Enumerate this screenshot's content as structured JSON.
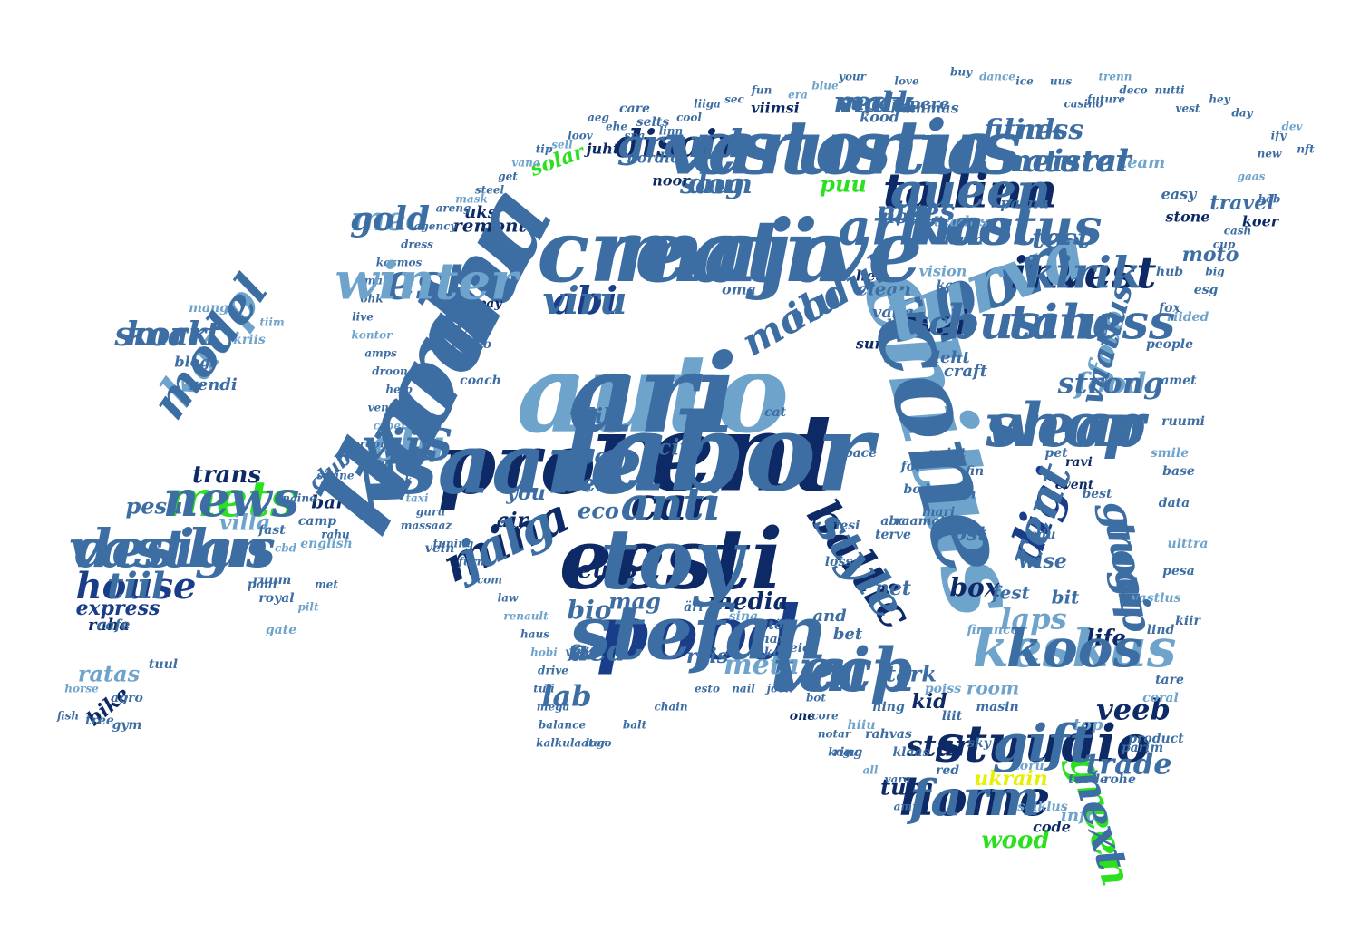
{
  "palette": {
    "dark": "#0d2a66",
    "navy": "#1a3d8a",
    "mid": "#3c6da3",
    "light": "#6ea3cc",
    "pale": "#9dc3df",
    "green": "#2be01f",
    "yellow": "#e6f000"
  },
  "words": [
    {
      "text": "auto",
      "color": "light"
    },
    {
      "text": "kodu",
      "color": "mid"
    },
    {
      "text": "ehitus",
      "color": "light"
    },
    {
      "text": "rent",
      "color": "dark"
    },
    {
      "text": "eesti",
      "color": "dark"
    },
    {
      "text": "pro",
      "color": "dark"
    },
    {
      "text": "maja",
      "color": "mid"
    },
    {
      "text": "estonia",
      "color": "mid"
    },
    {
      "text": "sport",
      "color": "mid"
    },
    {
      "text": "pood",
      "color": "navy"
    },
    {
      "text": "tallinn",
      "color": "dark"
    },
    {
      "text": "kool",
      "color": "mid"
    },
    {
      "text": "shop",
      "color": "mid"
    },
    {
      "text": "stuudio",
      "color": "dark"
    },
    {
      "text": "tech",
      "color": "mid"
    },
    {
      "text": "keskus",
      "color": "light"
    },
    {
      "text": "mina",
      "color": "dark"
    },
    {
      "text": "baltic",
      "color": "dark"
    },
    {
      "text": "design",
      "color": "mid"
    },
    {
      "text": "group",
      "color": "mid"
    },
    {
      "text": "digi",
      "color": "navy"
    },
    {
      "text": "est",
      "color": "mid"
    },
    {
      "text": "invest",
      "color": "dark"
    },
    {
      "text": "talu",
      "color": "mid"
    },
    {
      "text": "home",
      "color": "dark"
    },
    {
      "text": "kaup",
      "color": "light"
    },
    {
      "text": "house",
      "color": "navy"
    },
    {
      "text": "mets",
      "color": "green"
    },
    {
      "text": "green",
      "color": "green"
    },
    {
      "text": "car",
      "color": "dark"
    },
    {
      "text": "smart",
      "color": "mid"
    },
    {
      "text": "elu",
      "color": "light"
    },
    {
      "text": "abi",
      "color": "navy"
    },
    {
      "text": "ilu",
      "color": "mid"
    },
    {
      "text": "disain",
      "color": "dark"
    },
    {
      "text": "med",
      "color": "light"
    },
    {
      "text": "web",
      "color": "dark"
    },
    {
      "text": "foto",
      "color": "light"
    },
    {
      "text": "food",
      "color": "light"
    },
    {
      "text": "meister",
      "color": "mid"
    },
    {
      "text": "link",
      "color": "mid"
    },
    {
      "text": "matk",
      "color": "mid"
    },
    {
      "text": "saun",
      "color": "mid"
    },
    {
      "text": "mees",
      "color": "mid"
    },
    {
      "text": "test",
      "color": "mid"
    },
    {
      "text": "laps",
      "color": "light"
    },
    {
      "text": "trade",
      "color": "mid"
    },
    {
      "text": "veeb",
      "color": "dark"
    },
    {
      "text": "star",
      "color": "dark"
    },
    {
      "text": "aed",
      "color": "mid"
    },
    {
      "text": "lab",
      "color": "mid"
    },
    {
      "text": "meta",
      "color": "light"
    },
    {
      "text": "bio",
      "color": "mid"
    },
    {
      "text": "wood",
      "color": "green"
    },
    {
      "text": "ukrain",
      "color": "yellow"
    },
    {
      "text": "puu",
      "color": "green"
    },
    {
      "text": "solar",
      "color": "green"
    },
    {
      "text": "trans",
      "color": "dark"
    },
    {
      "text": "club",
      "color": "mid"
    },
    {
      "text": "villa",
      "color": "light"
    },
    {
      "text": "pesu",
      "color": "mid"
    },
    {
      "text": "laen",
      "color": "mid"
    },
    {
      "text": "media",
      "color": "dark"
    },
    {
      "text": "mag",
      "color": "mid"
    },
    {
      "text": "euro",
      "color": "dark"
    },
    {
      "text": "box",
      "color": "dark"
    },
    {
      "text": "net",
      "color": "mid"
    },
    {
      "text": "lux",
      "color": "mid"
    },
    {
      "text": "eco",
      "color": "mid"
    },
    {
      "text": "tee",
      "color": "mid"
    },
    {
      "text": "lill",
      "color": "mid"
    },
    {
      "text": "you",
      "color": "mid"
    },
    {
      "text": "air",
      "color": "dark"
    },
    {
      "text": "city",
      "color": "mid"
    },
    {
      "text": "life",
      "color": "dark"
    },
    {
      "text": "wise",
      "color": "mid"
    },
    {
      "text": "ost",
      "color": "mid"
    },
    {
      "text": "fest",
      "color": "mid"
    },
    {
      "text": "bit",
      "color": "mid"
    },
    {
      "text": "and",
      "color": "mid"
    },
    {
      "text": "bet",
      "color": "mid"
    },
    {
      "text": "reis",
      "color": "mid"
    },
    {
      "text": "fix",
      "color": "mid"
    },
    {
      "text": "tark",
      "color": "mid"
    },
    {
      "text": "room",
      "color": "light"
    },
    {
      "text": "kid",
      "color": "dark"
    },
    {
      "text": "turg",
      "color": "dark"
    },
    {
      "text": "top",
      "color": "light"
    },
    {
      "text": "info",
      "color": "light"
    },
    {
      "text": "code",
      "color": "dark"
    },
    {
      "text": "express",
      "color": "navy"
    },
    {
      "text": "raha",
      "color": "dark"
    },
    {
      "text": "ratas",
      "color": "light"
    },
    {
      "text": "bike",
      "color": "dark"
    },
    {
      "text": "cafe",
      "color": "mid"
    },
    {
      "text": "bar",
      "color": "dark"
    },
    {
      "text": "rendi",
      "color": "mid"
    },
    {
      "text": "blogi",
      "color": "mid"
    },
    {
      "text": "moto",
      "color": "mid"
    },
    {
      "text": "travel",
      "color": "mid"
    },
    {
      "text": "nord",
      "color": "mid"
    },
    {
      "text": "remont",
      "color": "dark"
    },
    {
      "text": "uks",
      "color": "dark"
    },
    {
      "text": "vaba",
      "color": "mid"
    },
    {
      "text": "leht",
      "color": "mid"
    },
    {
      "text": "clean",
      "color": "mid"
    },
    {
      "text": "sun",
      "color": "dark"
    },
    {
      "text": "buss",
      "color": "mid"
    },
    {
      "text": "craft",
      "color": "mid"
    },
    {
      "text": "hea",
      "color": "dark"
    },
    {
      "text": "super",
      "color": "mid"
    },
    {
      "text": "pere",
      "color": "mid"
    },
    {
      "text": "viimsi",
      "color": "dark"
    },
    {
      "text": "kood",
      "color": "mid"
    },
    {
      "text": "hammas",
      "color": "mid"
    },
    {
      "text": "noor",
      "color": "dark"
    },
    {
      "text": "team",
      "color": "light"
    },
    {
      "text": "nordic",
      "color": "mid"
    },
    {
      "text": "juht",
      "color": "dark"
    },
    {
      "text": "selts",
      "color": "mid"
    },
    {
      "text": "care",
      "color": "mid"
    },
    {
      "text": "easy",
      "color": "mid"
    },
    {
      "text": "stone",
      "color": "dark"
    },
    {
      "text": "koer",
      "color": "dark"
    },
    {
      "text": "vision",
      "color": "light"
    },
    {
      "text": "narva",
      "color": "mid"
    },
    {
      "text": "parnu",
      "color": "mid"
    },
    {
      "text": "teadus",
      "color": "light"
    },
    {
      "text": "kass",
      "color": "mid"
    },
    {
      "text": "oma",
      "color": "mid"
    },
    {
      "text": "hub",
      "color": "mid"
    },
    {
      "text": "fox",
      "color": "mid"
    },
    {
      "text": "cat",
      "color": "mid"
    },
    {
      "text": "pay",
      "color": "dark"
    },
    {
      "text": "cargo",
      "color": "mid"
    },
    {
      "text": "coach",
      "color": "mid"
    },
    {
      "text": "mang",
      "color": "light"
    },
    {
      "text": "kriis",
      "color": "light"
    },
    {
      "text": "tiim",
      "color": "light"
    },
    {
      "text": "tuul",
      "color": "mid"
    },
    {
      "text": "camp",
      "color": "mid"
    },
    {
      "text": "ruum",
      "color": "mid"
    },
    {
      "text": "paat",
      "color": "mid"
    },
    {
      "text": "fast",
      "color": "mid"
    },
    {
      "text": "royal",
      "color": "mid"
    },
    {
      "text": "english",
      "color": "light"
    },
    {
      "text": "agro",
      "color": "mid"
    },
    {
      "text": "tree",
      "color": "mid"
    },
    {
      "text": "gym",
      "color": "mid"
    },
    {
      "text": "fish",
      "color": "mid"
    },
    {
      "text": "horse",
      "color": "light"
    },
    {
      "text": "naine",
      "color": "mid"
    },
    {
      "text": "sinine",
      "color": "mid"
    },
    {
      "text": "cbd",
      "color": "light"
    },
    {
      "text": "rahu",
      "color": "mid"
    },
    {
      "text": "gate",
      "color": "light"
    },
    {
      "text": "pilt",
      "color": "light"
    },
    {
      "text": "met",
      "color": "mid"
    },
    {
      "text": "guru",
      "color": "mid"
    },
    {
      "text": "vein",
      "color": "mid"
    },
    {
      "text": "mesi",
      "color": "mid"
    },
    {
      "text": "abc",
      "color": "mid"
    },
    {
      "text": "raamat",
      "color": "mid"
    },
    {
      "text": "aken",
      "color": "mid"
    },
    {
      "text": "finance",
      "color": "light"
    },
    {
      "text": "edu",
      "color": "mid"
    },
    {
      "text": "best",
      "color": "mid"
    },
    {
      "text": "event",
      "color": "dark"
    },
    {
      "text": "pet",
      "color": "mid"
    },
    {
      "text": "ravi",
      "color": "dark"
    },
    {
      "text": "fin",
      "color": "mid"
    },
    {
      "text": "point",
      "color": "mid"
    },
    {
      "text": "space",
      "color": "mid"
    },
    {
      "text": "body",
      "color": "mid"
    },
    {
      "text": "mari",
      "color": "mid"
    },
    {
      "text": "terve",
      "color": "mid"
    },
    {
      "text": "loss",
      "color": "mid"
    },
    {
      "text": "for",
      "color": "mid"
    },
    {
      "text": "visit",
      "color": "mid"
    },
    {
      "text": "äri",
      "color": "mid"
    },
    {
      "text": "sina",
      "color": "light"
    },
    {
      "text": "töö",
      "color": "mid"
    },
    {
      "text": "max",
      "color": "mid"
    },
    {
      "text": "meie",
      "color": "mid"
    },
    {
      "text": "alko",
      "color": "mid"
    },
    {
      "text": "one",
      "color": "dark"
    },
    {
      "text": "hiiu",
      "color": "light"
    },
    {
      "text": "rahvas",
      "color": "mid"
    },
    {
      "text": "ring",
      "color": "mid"
    },
    {
      "text": "red",
      "color": "mid"
    },
    {
      "text": "sky",
      "color": "mid"
    },
    {
      "text": "klaas",
      "color": "mid"
    },
    {
      "text": "liit",
      "color": "mid"
    },
    {
      "text": "hing",
      "color": "mid"
    },
    {
      "text": "poiss",
      "color": "light"
    },
    {
      "text": "masin",
      "color": "mid"
    },
    {
      "text": "toru",
      "color": "light"
    },
    {
      "text": "seiklus",
      "color": "light"
    },
    {
      "text": "toode",
      "color": "mid"
    },
    {
      "text": "rohe",
      "color": "mid"
    },
    {
      "text": "parim",
      "color": "mid"
    },
    {
      "text": "product",
      "color": "mid"
    },
    {
      "text": "coral",
      "color": "light"
    },
    {
      "text": "tare",
      "color": "mid"
    },
    {
      "text": "lind",
      "color": "mid"
    },
    {
      "text": "kiir",
      "color": "mid"
    },
    {
      "text": "vastlus",
      "color": "light"
    },
    {
      "text": "pesa",
      "color": "mid"
    },
    {
      "text": "ulttra",
      "color": "light"
    },
    {
      "text": "data",
      "color": "mid"
    },
    {
      "text": "base",
      "color": "mid"
    },
    {
      "text": "smile",
      "color": "light"
    },
    {
      "text": "ruumi",
      "color": "mid"
    },
    {
      "text": "amet",
      "color": "mid"
    },
    {
      "text": "people",
      "color": "mid"
    },
    {
      "text": "riided",
      "color": "light"
    },
    {
      "text": "esg",
      "color": "mid"
    },
    {
      "text": "big",
      "color": "mid"
    },
    {
      "text": "cup",
      "color": "mid"
    },
    {
      "text": "cash",
      "color": "mid"
    },
    {
      "text": "bob",
      "color": "mid"
    },
    {
      "text": "gaas",
      "color": "light"
    },
    {
      "text": "new",
      "color": "mid"
    },
    {
      "text": "ify",
      "color": "mid"
    },
    {
      "text": "nft",
      "color": "mid"
    },
    {
      "text": "dev",
      "color": "light"
    },
    {
      "text": "day",
      "color": "mid"
    },
    {
      "text": "hey",
      "color": "mid"
    },
    {
      "text": "vest",
      "color": "mid"
    },
    {
      "text": "nutti",
      "color": "mid"
    },
    {
      "text": "deco",
      "color": "mid"
    },
    {
      "text": "future",
      "color": "mid"
    },
    {
      "text": "casino",
      "color": "mid"
    },
    {
      "text": "trenn",
      "color": "light"
    },
    {
      "text": "uus",
      "color": "mid"
    },
    {
      "text": "ice",
      "color": "mid"
    },
    {
      "text": "dance",
      "color": "light"
    },
    {
      "text": "buy",
      "color": "mid"
    },
    {
      "text": "love",
      "color": "mid"
    },
    {
      "text": "your",
      "color": "mid"
    },
    {
      "text": "blue",
      "color": "light"
    },
    {
      "text": "era",
      "color": "light"
    },
    {
      "text": "fun",
      "color": "mid"
    },
    {
      "text": "sec",
      "color": "mid"
    },
    {
      "text": "liiga",
      "color": "mid"
    },
    {
      "text": "cool",
      "color": "mid"
    },
    {
      "text": "linn",
      "color": "mid"
    },
    {
      "text": "spa",
      "color": "mid"
    },
    {
      "text": "ehe",
      "color": "mid"
    },
    {
      "text": "aeg",
      "color": "mid"
    },
    {
      "text": "loov",
      "color": "mid"
    },
    {
      "text": "sell",
      "color": "light"
    },
    {
      "text": "tip",
      "color": "mid"
    },
    {
      "text": "vana",
      "color": "light"
    },
    {
      "text": "get",
      "color": "mid"
    },
    {
      "text": "steel",
      "color": "mid"
    },
    {
      "text": "mask",
      "color": "light"
    },
    {
      "text": "areng",
      "color": "mid"
    },
    {
      "text": "agency",
      "color": "mid"
    },
    {
      "text": "dress",
      "color": "mid"
    },
    {
      "text": "kosmos",
      "color": "mid"
    },
    {
      "text": "mahe",
      "color": "mid"
    },
    {
      "text": "ohk",
      "color": "mid"
    },
    {
      "text": "live",
      "color": "mid"
    },
    {
      "text": "kontor",
      "color": "light"
    },
    {
      "text": "amps",
      "color": "mid"
    },
    {
      "text": "droon",
      "color": "mid"
    },
    {
      "text": "help",
      "color": "mid"
    },
    {
      "text": "vent",
      "color": "mid"
    },
    {
      "text": "cyber",
      "color": "light"
    },
    {
      "text": "groom",
      "color": "mid"
    },
    {
      "text": "real",
      "color": "mid"
    },
    {
      "text": "look",
      "color": "mid"
    },
    {
      "text": "taxi",
      "color": "light"
    },
    {
      "text": "massaaz",
      "color": "mid"
    },
    {
      "text": "tuning",
      "color": "mid"
    },
    {
      "text": "furn",
      "color": "mid"
    },
    {
      "text": "com",
      "color": "mid"
    },
    {
      "text": "law",
      "color": "mid"
    },
    {
      "text": "renault",
      "color": "light"
    },
    {
      "text": "haus",
      "color": "mid"
    },
    {
      "text": "hobi",
      "color": "light"
    },
    {
      "text": "drive",
      "color": "mid"
    },
    {
      "text": "tuli",
      "color": "mid"
    },
    {
      "text": "mega",
      "color": "mid"
    },
    {
      "text": "balance",
      "color": "mid"
    },
    {
      "text": "kalkulaator",
      "color": "mid"
    },
    {
      "text": "logo",
      "color": "mid"
    },
    {
      "text": "balt",
      "color": "mid"
    },
    {
      "text": "chain",
      "color": "mid"
    },
    {
      "text": "esto",
      "color": "mid"
    },
    {
      "text": "nail",
      "color": "mid"
    },
    {
      "text": "jook",
      "color": "mid"
    },
    {
      "text": "bot",
      "color": "mid"
    },
    {
      "text": "core",
      "color": "mid"
    },
    {
      "text": "notar",
      "color": "mid"
    },
    {
      "text": "kogu",
      "color": "mid"
    },
    {
      "text": "all",
      "color": "light"
    },
    {
      "text": "vara",
      "color": "mid"
    },
    {
      "text": "amp",
      "color": "mid"
    },
    {
      "text": "ari",
      "color": "mid"
    },
    {
      "text": "karma",
      "color": "mid"
    },
    {
      "text": "cone",
      "color": "mid"
    },
    {
      "text": "labor",
      "color": "mid"
    },
    {
      "text": "toy",
      "color": "mid"
    },
    {
      "text": "saare",
      "color": "mid"
    },
    {
      "text": "creative",
      "color": "mid"
    },
    {
      "text": "varustus",
      "color": "mid"
    },
    {
      "text": "turva",
      "color": "light"
    },
    {
      "text": "stefan",
      "color": "mid"
    },
    {
      "text": "queen",
      "color": "mid"
    },
    {
      "text": "armastus",
      "color": "mid"
    },
    {
      "text": "wear",
      "color": "mid"
    },
    {
      "text": "gift",
      "color": "mid"
    },
    {
      "text": "vaip",
      "color": "mid"
    },
    {
      "text": "koos",
      "color": "mid"
    },
    {
      "text": "jalg",
      "color": "mid"
    },
    {
      "text": "style",
      "color": "mid"
    },
    {
      "text": "vastlus",
      "color": "mid"
    },
    {
      "text": "tugi",
      "color": "mid"
    },
    {
      "text": "rent",
      "color": "mid"
    },
    {
      "text": "winter",
      "color": "light"
    },
    {
      "text": "kirik",
      "color": "mid"
    },
    {
      "text": "business",
      "color": "mid"
    },
    {
      "text": "farm",
      "color": "mid"
    },
    {
      "text": "model",
      "color": "mid"
    },
    {
      "text": "tiil",
      "color": "mid"
    },
    {
      "text": "news",
      "color": "mid"
    },
    {
      "text": "next",
      "color": "mid"
    },
    {
      "text": "anti",
      "color": "mid"
    },
    {
      "text": "kork",
      "color": "mid"
    },
    {
      "text": "viiS",
      "color": "mid"
    },
    {
      "text": "viru",
      "color": "mid"
    },
    {
      "text": "moodul",
      "color": "mid"
    },
    {
      "text": "grand",
      "color": "mid"
    },
    {
      "text": "gold",
      "color": "mid"
    },
    {
      "text": "tch",
      "color": "mid"
    },
    {
      "text": "vaatlus",
      "color": "mid"
    },
    {
      "text": "strong",
      "color": "mid"
    },
    {
      "text": "natural",
      "color": "mid"
    },
    {
      "text": "fitness",
      "color": "mid"
    },
    {
      "text": "vedu",
      "color": "mid"
    },
    {
      "text": "dog",
      "color": "mid"
    }
  ]
}
